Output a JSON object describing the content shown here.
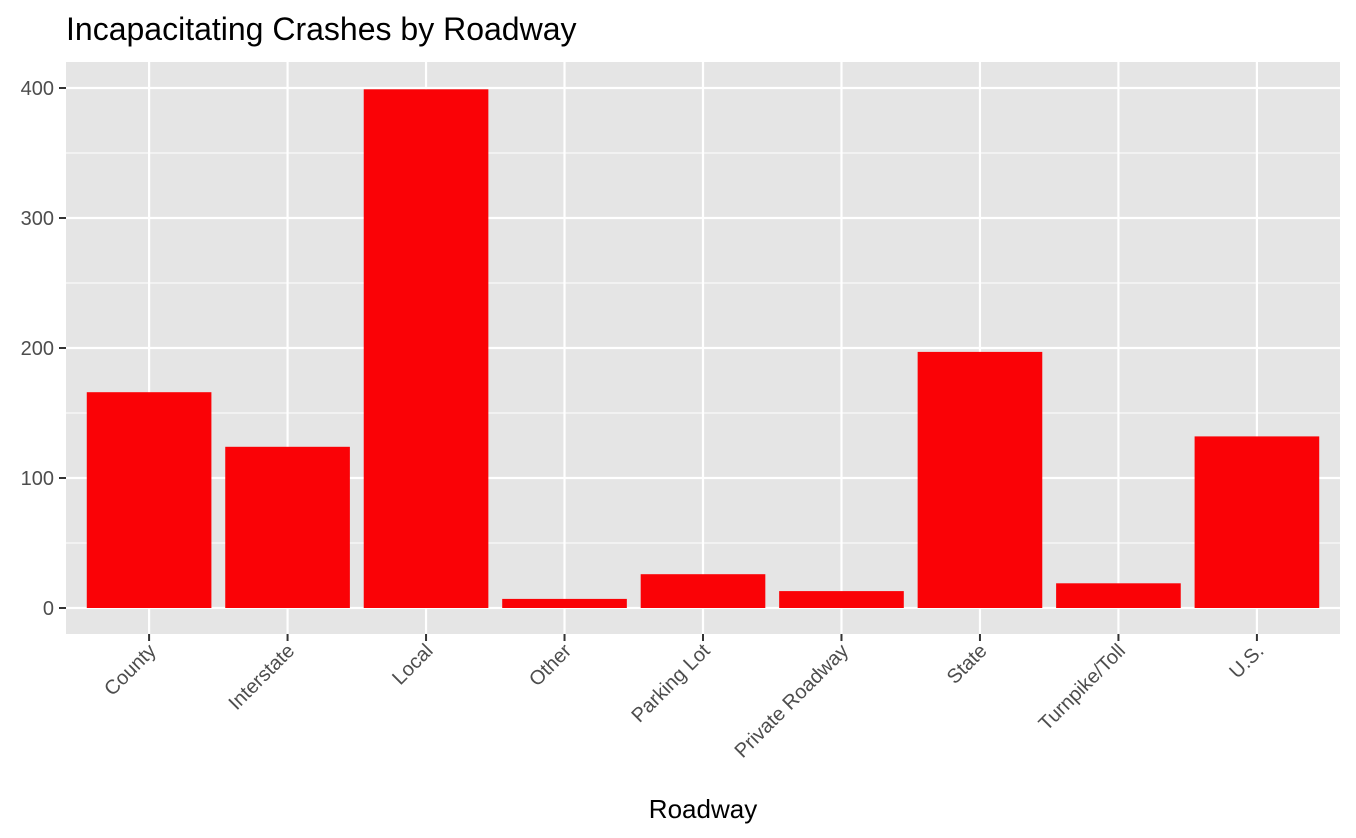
{
  "chart_data": {
    "type": "bar",
    "title": "Incapacitating Crashes by Roadway",
    "xlabel": "Roadway",
    "ylabel": "",
    "categories": [
      "County",
      "Interstate",
      "Local",
      "Other",
      "Parking Lot",
      "Private Roadway",
      "State",
      "Turnpike/Toll",
      "U.S."
    ],
    "values": [
      166,
      124,
      399,
      7,
      26,
      13,
      197,
      19,
      132
    ],
    "ylim": [
      -20,
      420
    ],
    "yticks": [
      0,
      100,
      200,
      300,
      400
    ],
    "ytick_labels": [
      "0",
      "100",
      "200",
      "300",
      "400"
    ],
    "grid": true,
    "legend": "none",
    "colors": {
      "bar": "#fa0206",
      "panel": "#e5e5e5",
      "grid": "#ffffff"
    }
  }
}
